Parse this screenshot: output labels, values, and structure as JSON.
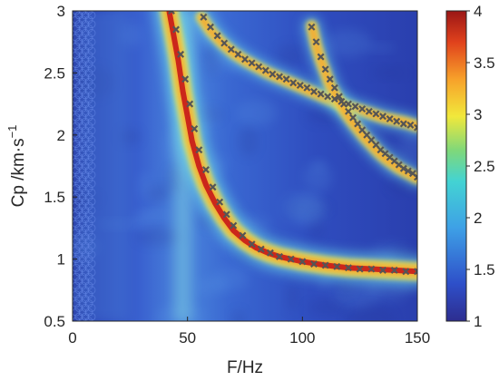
{
  "chart_data": {
    "type": "heatmap",
    "title": "",
    "xlabel": "F/Hz",
    "ylabel_main": "Cp /km·s",
    "ylabel_sup": "−1",
    "xlim": [
      0,
      150
    ],
    "ylim": [
      0.5,
      3
    ],
    "x_ticks": [
      {
        "value": 0,
        "label": "0"
      },
      {
        "value": 50,
        "label": "50"
      },
      {
        "value": 100,
        "label": "100"
      },
      {
        "value": 150,
        "label": "150"
      }
    ],
    "y_ticks": [
      {
        "value": 0.5,
        "label": "0.5"
      },
      {
        "value": 1,
        "label": "1"
      },
      {
        "value": 1.5,
        "label": "1.5"
      },
      {
        "value": 2,
        "label": "2"
      },
      {
        "value": 2.5,
        "label": "2.5"
      },
      {
        "value": 3,
        "label": "3"
      }
    ],
    "colorbar": {
      "min": 1,
      "max": 4,
      "ticks": [
        {
          "value": 1,
          "label": "1"
        },
        {
          "value": 1.5,
          "label": "1.5"
        },
        {
          "value": 2,
          "label": "2"
        },
        {
          "value": 2.5,
          "label": "2.5"
        },
        {
          "value": 3,
          "label": "3"
        },
        {
          "value": 3.5,
          "label": "3.5"
        },
        {
          "value": 4,
          "label": "4"
        }
      ],
      "colormap": "jet"
    },
    "ridges": [
      {
        "x": [
          42,
          44,
          46,
          48,
          50,
          52,
          55,
          58,
          62,
          66,
          70,
          75,
          80,
          85,
          90,
          100,
          110,
          120,
          130,
          140,
          150
        ],
        "y": [
          3.0,
          2.8,
          2.6,
          2.35,
          2.15,
          1.95,
          1.75,
          1.6,
          1.45,
          1.33,
          1.23,
          1.15,
          1.09,
          1.05,
          1.02,
          0.98,
          0.95,
          0.93,
          0.92,
          0.91,
          0.9
        ]
      },
      {
        "x": [
          56,
          60,
          65,
          70,
          75,
          80,
          85,
          90,
          95,
          100,
          105,
          110,
          115,
          120,
          125,
          130,
          135,
          140,
          145,
          150
        ],
        "y": [
          2.95,
          2.84,
          2.74,
          2.66,
          2.6,
          2.55,
          2.5,
          2.46,
          2.42,
          2.38,
          2.34,
          2.3,
          2.26,
          2.23,
          2.2,
          2.17,
          2.14,
          2.12,
          2.1,
          2.07
        ]
      },
      {
        "x": [
          104,
          106,
          108,
          110,
          112,
          115,
          118,
          121,
          124,
          127,
          130,
          133,
          136,
          139,
          142,
          145,
          148,
          150
        ],
        "y": [
          2.88,
          2.72,
          2.6,
          2.5,
          2.4,
          2.3,
          2.2,
          2.12,
          2.05,
          1.98,
          1.92,
          1.86,
          1.81,
          1.77,
          1.73,
          1.7,
          1.67,
          1.65
        ]
      }
    ],
    "picks": [
      {
        "marker": "x",
        "color": "#555555",
        "x": [
          43,
          45,
          47,
          49,
          51,
          53,
          55,
          58,
          61,
          64,
          67,
          70,
          74,
          78,
          82,
          86,
          90,
          95,
          100,
          105,
          110,
          115,
          120,
          125,
          130,
          135,
          140,
          145,
          150
        ],
        "y": [
          3.0,
          2.85,
          2.65,
          2.45,
          2.25,
          2.05,
          1.88,
          1.72,
          1.58,
          1.46,
          1.36,
          1.27,
          1.19,
          1.12,
          1.08,
          1.05,
          1.02,
          1.0,
          0.98,
          0.96,
          0.95,
          0.94,
          0.93,
          0.92,
          0.92,
          0.91,
          0.91,
          0.9,
          0.9
        ]
      },
      {
        "marker": "x",
        "color": "#555555",
        "x": [
          57,
          60,
          63,
          66,
          69,
          72,
          75,
          78,
          81,
          84,
          87,
          90,
          93,
          96,
          99,
          102,
          105,
          108,
          111,
          114,
          117,
          120,
          123,
          126,
          129,
          132,
          135,
          138,
          141,
          144,
          147,
          150
        ],
        "y": [
          2.95,
          2.87,
          2.8,
          2.74,
          2.69,
          2.65,
          2.61,
          2.58,
          2.55,
          2.52,
          2.49,
          2.47,
          2.45,
          2.42,
          2.4,
          2.38,
          2.35,
          2.33,
          2.31,
          2.29,
          2.27,
          2.25,
          2.23,
          2.21,
          2.19,
          2.17,
          2.15,
          2.13,
          2.11,
          2.09,
          2.08,
          2.06
        ]
      },
      {
        "marker": "x",
        "color": "#555555",
        "x": [
          104,
          106,
          108,
          110,
          112,
          114,
          116,
          118,
          120,
          122,
          124,
          126,
          128,
          130,
          132,
          134,
          136,
          138,
          140,
          142,
          144,
          146,
          148,
          150
        ],
        "y": [
          2.87,
          2.75,
          2.63,
          2.53,
          2.45,
          2.38,
          2.31,
          2.25,
          2.19,
          2.14,
          2.09,
          2.04,
          2.0,
          1.96,
          1.92,
          1.88,
          1.85,
          1.82,
          1.79,
          1.76,
          1.73,
          1.71,
          1.69,
          1.66
        ]
      }
    ],
    "legend": "none",
    "grid": false
  }
}
